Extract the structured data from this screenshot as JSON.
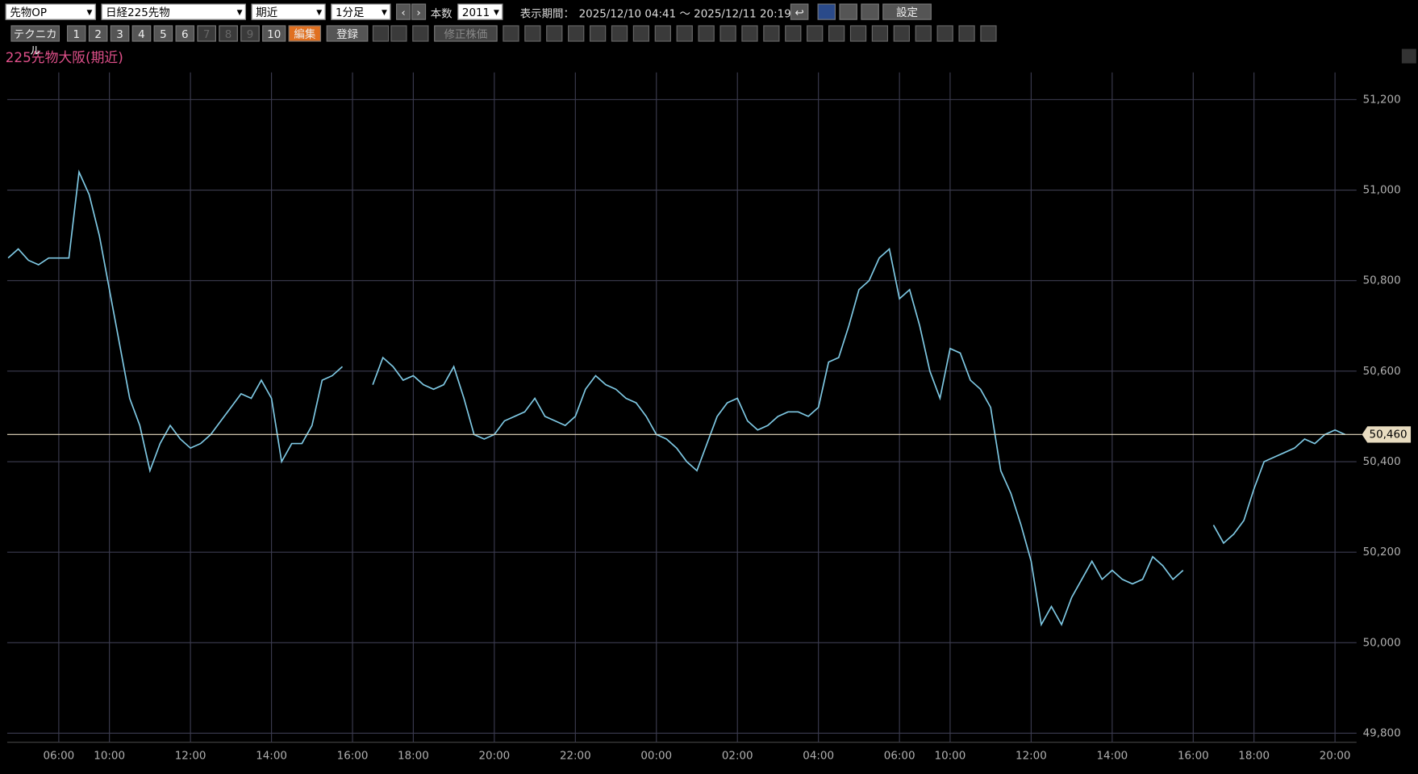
{
  "toolbar": {
    "market": "先物OP",
    "symbol": "日経225先物",
    "contract": "期近",
    "interval": "1分足",
    "bars_label": "本数",
    "bars": "2011",
    "period_label": "表示期間：",
    "period": "2025/12/10 04:41 ～ 2025/12/11 20:19",
    "settings": "設定",
    "technical": "テクニカル",
    "numbers": [
      "1",
      "2",
      "3",
      "4",
      "5",
      "6",
      "7",
      "8",
      "9",
      "10"
    ],
    "edit": "編集",
    "register": "登録",
    "adjusted": "修正株価"
  },
  "chart_data": {
    "type": "line",
    "title": "225先物大阪(期近)",
    "color": "#7ec8e3",
    "categories": [
      null,
      null,
      null,
      null,
      null,
      "06:00",
      null,
      null,
      null,
      null,
      "10:00",
      null,
      null,
      null,
      null,
      null,
      null,
      null,
      "12:00",
      null,
      null,
      null,
      null,
      null,
      null,
      null,
      "14:00",
      null,
      null,
      null,
      null,
      null,
      null,
      null,
      "16:00",
      null,
      null,
      null,
      null,
      null,
      "18:00",
      null,
      null,
      null,
      null,
      null,
      null,
      null,
      "20:00",
      null,
      null,
      null,
      null,
      null,
      null,
      null,
      "22:00",
      null,
      null,
      null,
      null,
      null,
      null,
      null,
      "00:00",
      null,
      null,
      null,
      null,
      null,
      null,
      null,
      "02:00",
      null,
      null,
      null,
      null,
      null,
      null,
      null,
      "04:00",
      null,
      null,
      null,
      null,
      null,
      null,
      null,
      "06:00",
      null,
      null,
      null,
      null,
      "10:00",
      null,
      null,
      null,
      null,
      null,
      null,
      null,
      "12:00",
      null,
      null,
      null,
      null,
      null,
      null,
      null,
      "14:00",
      null,
      null,
      null,
      null,
      null,
      null,
      null,
      "16:00",
      null,
      null,
      null,
      null,
      null,
      "18:00",
      null,
      null,
      null,
      null,
      null,
      null,
      null,
      "20:00",
      null
    ],
    "values": [
      50850,
      50870,
      50845,
      50835,
      50850,
      50850,
      50850,
      51040,
      50990,
      50900,
      50780,
      50660,
      50540,
      50480,
      50380,
      50440,
      50480,
      50450,
      50430,
      50440,
      50460,
      50490,
      50520,
      50550,
      50540,
      50580,
      50540,
      50400,
      50440,
      50440,
      50480,
      50580,
      50590,
      50610,
      null,
      null,
      50570,
      50630,
      50610,
      50580,
      50590,
      50570,
      50560,
      50570,
      50610,
      50540,
      50460,
      50450,
      50460,
      50490,
      50500,
      50510,
      50540,
      50500,
      50490,
      50480,
      50500,
      50560,
      50590,
      50570,
      50560,
      50540,
      50530,
      50500,
      50460,
      50450,
      50430,
      50400,
      50380,
      50440,
      50500,
      50530,
      50540,
      50490,
      50470,
      50480,
      50500,
      50510,
      50510,
      50500,
      50520,
      50620,
      50630,
      50700,
      50780,
      50800,
      50850,
      50870,
      50760,
      50780,
      50700,
      50600,
      50540,
      50650,
      50640,
      50580,
      50560,
      50520,
      50380,
      50330,
      50260,
      50180,
      50040,
      50080,
      50040,
      50100,
      50140,
      50180,
      50140,
      50160,
      50140,
      50130,
      50140,
      50190,
      50170,
      50140,
      50160,
      null,
      null,
      50260,
      50220,
      50240,
      50270,
      50340,
      50400,
      50410,
      50420,
      50430,
      50450,
      50440,
      50460,
      50470,
      50460
    ],
    "ylim": [
      49780,
      51250
    ],
    "yticks": [
      {
        "value": 49800,
        "label": "49,800"
      },
      {
        "value": 50000,
        "label": "50,000"
      },
      {
        "value": 50200,
        "label": "50,200"
      },
      {
        "value": 50400,
        "label": "50,400"
      },
      {
        "value": 50600,
        "label": "50,600"
      },
      {
        "value": 50800,
        "label": "50,800"
      },
      {
        "value": 51000,
        "label": "51,000"
      },
      {
        "value": 51200,
        "label": "51,200"
      }
    ],
    "grid": true,
    "last": {
      "value": 50460,
      "label": "50,460"
    }
  }
}
